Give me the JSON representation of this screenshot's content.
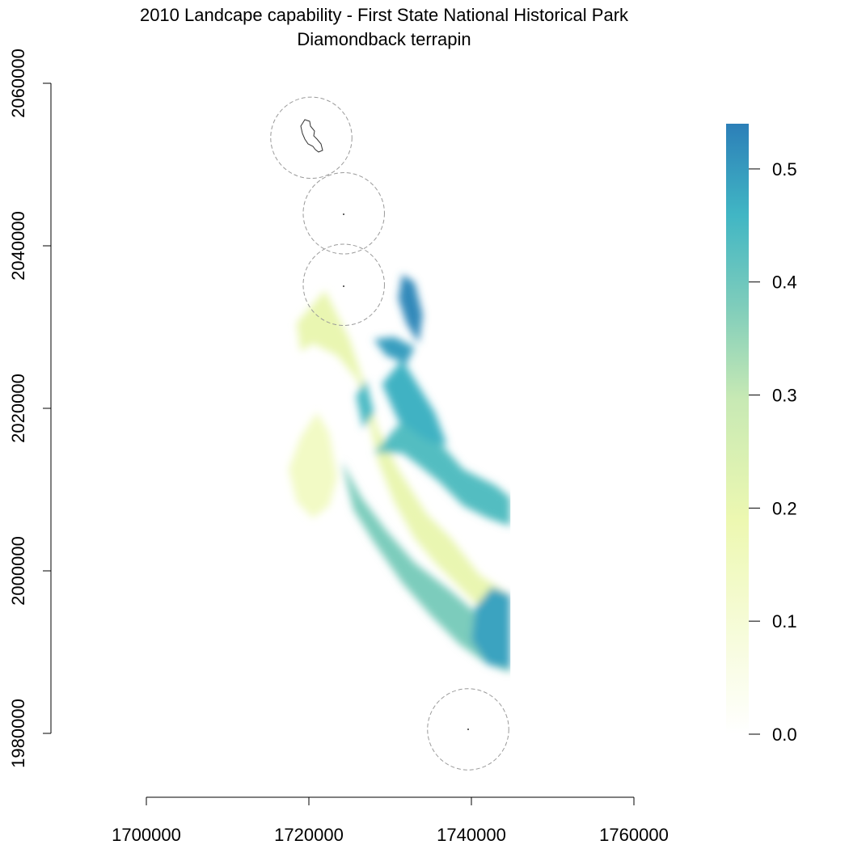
{
  "title": {
    "line1": "2010 Landcape capability - First State National Historical Park",
    "line2": "Diamondback terrapin"
  },
  "colors": {
    "ramp": [
      "#ffffff",
      "#edf8b1",
      "#c7e9b4",
      "#7fcdbb",
      "#41b6c4",
      "#2c7fb8"
    ],
    "buffer_stroke": "#9a9a9a",
    "park_outline": "#333333"
  },
  "chart_data": {
    "type": "heatmap",
    "title": "2010 Landcape capability - First State National Historical Park",
    "subtitle": "Diamondback terrapin",
    "x_axis": {
      "ticks": [
        1700000,
        1720000,
        1740000,
        1760000
      ],
      "labels": [
        "1700000",
        "1720000",
        "1740000",
        "1760000"
      ],
      "range": [
        1700000,
        1760000
      ]
    },
    "y_axis": {
      "ticks": [
        1980000,
        2000000,
        2020000,
        2040000,
        2060000
      ],
      "labels": [
        "1980000",
        "2000000",
        "2020000",
        "2040000",
        "2060000"
      ],
      "range": [
        1980000,
        2060000
      ]
    },
    "legend": {
      "position": "right",
      "ticks": [
        0.0,
        0.1,
        0.2,
        0.3,
        0.4,
        0.5
      ],
      "labels": [
        "0.0",
        "0.1",
        "0.2",
        "0.3",
        "0.4",
        "0.5"
      ],
      "range": [
        0.0,
        0.54
      ]
    },
    "raster_extent": {
      "x": [
        1717000,
        1744800
      ],
      "y": [
        1975500,
        2055000
      ]
    },
    "park_buffers": [
      {
        "x": 1720300,
        "y": 2053300,
        "radius": 5000
      },
      {
        "x": 1724300,
        "y": 2044000,
        "radius": 5000
      },
      {
        "x": 1724300,
        "y": 2035200,
        "radius": 5000
      },
      {
        "x": 1739600,
        "y": 1980500,
        "radius": 5000
      }
    ],
    "capability_zones": [
      {
        "x": [
          1718500,
          1722000,
          1725000,
          1726500,
          1728500,
          1731000,
          1734500,
          1737500,
          1741000,
          1744800,
          1744800,
          1742500,
          1739000,
          1735500,
          1733000,
          1730500,
          1728500,
          1727500,
          1726000,
          1723500,
          1720500,
          1719000
        ],
        "y": [
          2030500,
          2034500,
          2028500,
          2024000,
          2017500,
          2012500,
          2007000,
          2004000,
          1999500,
          1997000,
          1991500,
          1994000,
          1997500,
          2001000,
          2004000,
          2008500,
          2013500,
          2018000,
          2023500,
          2026500,
          2028000,
          2027000
        ],
        "value": 0.12
      },
      {
        "x": [
          1717500,
          1719000,
          1721000,
          1722500,
          1723500,
          1722500,
          1720500,
          1718500
        ],
        "y": [
          2012500,
          2016500,
          2019500,
          2017000,
          2011500,
          2008000,
          2006500,
          2008500
        ],
        "value": 0.08
      },
      {
        "x": [
          1728000,
          1731500,
          1735500,
          1739000,
          1743000,
          1744800,
          1744800,
          1742000,
          1739000,
          1736000,
          1733500,
          1731500
        ],
        "y": [
          2014500,
          2018500,
          2016500,
          2012500,
          2010500,
          2009000,
          2005500,
          2006500,
          2008000,
          2011000,
          2013000,
          2014500
        ],
        "value": 0.4
      },
      {
        "x": [
          1729000,
          1731500,
          1735500,
          1737000,
          1734500,
          1731000
        ],
        "y": [
          2023000,
          2026000,
          2019500,
          2015500,
          2016000,
          2018500
        ],
        "value": 0.44
      },
      {
        "x": [
          1725800,
          1727000,
          1728000,
          1726700
        ],
        "y": [
          2021500,
          2023500,
          2019500,
          2017500
        ],
        "value": 0.42
      },
      {
        "x": [
          1724000,
          1726500,
          1729500,
          1733000,
          1737500,
          1741500,
          1744800,
          1744800,
          1742000,
          1738500,
          1735000,
          1731500,
          1728000,
          1725500
        ],
        "y": [
          2013500,
          2009000,
          2005000,
          2001000,
          1997500,
          1994000,
          1993000,
          1987500,
          1988500,
          1991000,
          1994500,
          1998500,
          2003500,
          2007500
        ],
        "value": 0.33
      },
      {
        "x": [
          1740500,
          1742500,
          1744800,
          1744800,
          1742000,
          1740000
        ],
        "y": [
          1995500,
          1998000,
          1997000,
          1988000,
          1988500,
          1991500
        ],
        "value": 0.47
      },
      {
        "x": [
          1731500,
          1733000,
          1734000,
          1733500,
          1732000,
          1731000
        ],
        "y": [
          2036500,
          2035500,
          2031500,
          2028000,
          2030500,
          2033500
        ],
        "value": 0.52
      },
      {
        "x": [
          1728000,
          1730500,
          1733000,
          1732000,
          1729500
        ],
        "y": [
          2028500,
          2028800,
          2027500,
          2025500,
          2026500
        ],
        "value": 0.48
      }
    ]
  },
  "axes": {
    "x_ticks": [
      "1700000",
      "1720000",
      "1740000",
      "1760000"
    ],
    "y_ticks": [
      "1980000",
      "2000000",
      "2020000",
      "2040000",
      "2060000"
    ]
  },
  "legend_labels": [
    "0.0",
    "0.1",
    "0.2",
    "0.3",
    "0.4",
    "0.5"
  ]
}
